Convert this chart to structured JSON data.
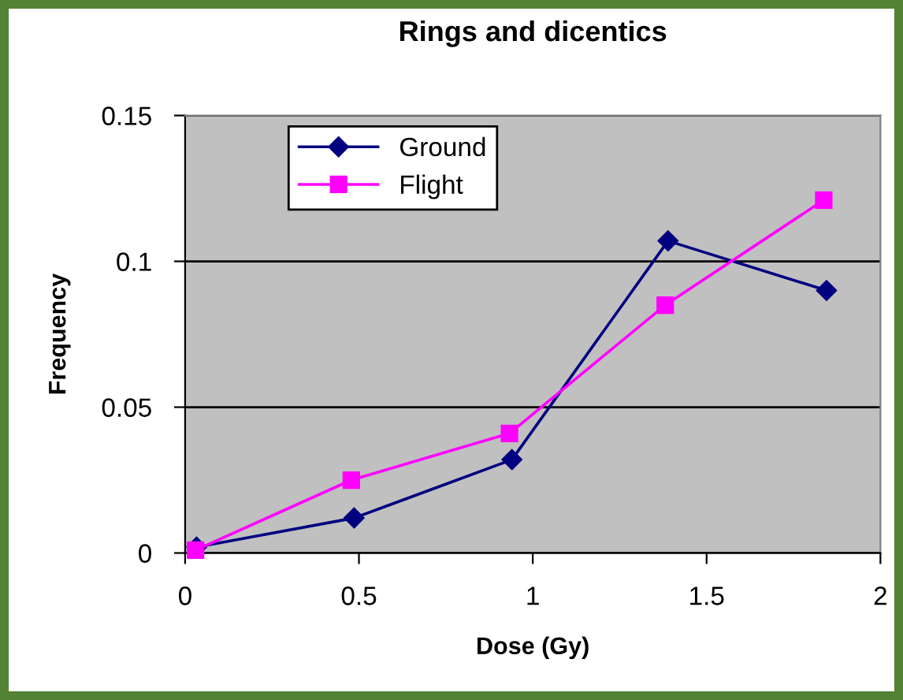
{
  "chart_data": {
    "type": "line",
    "title": "Rings and dicentics",
    "xlabel": "Dose (Gy)",
    "ylabel": "Frequency",
    "xlim": [
      0,
      2
    ],
    "xticks": [
      0,
      0.5,
      1,
      1.5,
      2
    ],
    "ylim": [
      0,
      0.15
    ],
    "yticks": [
      0,
      0.05,
      0.1,
      0.15
    ],
    "grid": "y",
    "legend": "top left",
    "series": [
      {
        "name": "Ground",
        "color": "#000080",
        "marker": "diamond",
        "x": [
          0.033,
          0.486,
          0.94,
          1.389,
          1.845
        ],
        "values": [
          0.002,
          0.012,
          0.032,
          0.107,
          0.09
        ]
      },
      {
        "name": "Flight",
        "color": "#ff00ff",
        "marker": "square",
        "x": [
          0.03,
          0.478,
          0.933,
          1.381,
          1.837
        ],
        "values": [
          0.001,
          0.025,
          0.041,
          0.085,
          0.121
        ]
      }
    ]
  }
}
